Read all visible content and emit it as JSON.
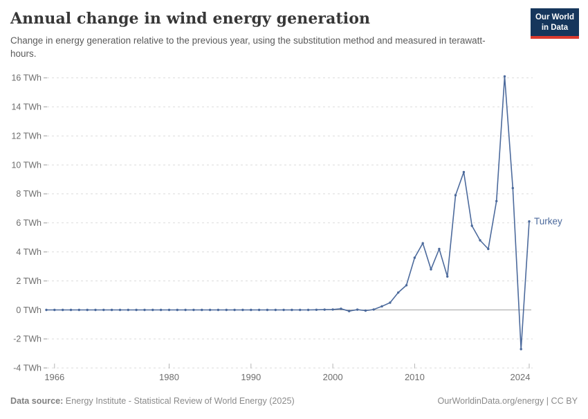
{
  "header": {
    "title": "Annual change in wind energy generation",
    "subtitle": "Change in energy generation relative to the previous year, using the substitution method and measured in terawatt-hours."
  },
  "logo": {
    "line1": "Our World",
    "line2": "in Data"
  },
  "footer": {
    "source_label": "Data source:",
    "source_text": "Energy Institute - Statistical Review of World Energy (2025)",
    "credit": "OurWorldinData.org/energy | CC BY"
  },
  "colors": {
    "line": "#4C6A9C",
    "grid": "#dbdbdb",
    "zero_line": "#a3a3a3",
    "tick_mark": "#b6b6b6",
    "axis_text": "#6e6e6e",
    "logo_bg": "#16365c",
    "logo_accent": "#dc3a2e"
  },
  "chart_data": {
    "type": "line",
    "title": "Annual change in wind energy generation",
    "unit": "TWh",
    "xlabel": "",
    "ylabel": "",
    "xlim": [
      1965,
      2024
    ],
    "ylim": [
      -4.6,
      16.6
    ],
    "x_ticks": [
      1966,
      1980,
      1990,
      2000,
      2010,
      2024
    ],
    "y_ticks": [
      -4,
      -2,
      0,
      2,
      4,
      6,
      8,
      10,
      12,
      14,
      16
    ],
    "y_tick_suffix": " TWh",
    "grid": "horizontal-dashed",
    "legend_position": "end-of-line-label",
    "series": [
      {
        "name": "Turkey",
        "years": [
          1965,
          1966,
          1967,
          1968,
          1969,
          1970,
          1971,
          1972,
          1973,
          1974,
          1975,
          1976,
          1977,
          1978,
          1979,
          1980,
          1981,
          1982,
          1983,
          1984,
          1985,
          1986,
          1987,
          1988,
          1989,
          1990,
          1991,
          1992,
          1993,
          1994,
          1995,
          1996,
          1997,
          1998,
          1999,
          2000,
          2001,
          2002,
          2003,
          2004,
          2005,
          2006,
          2007,
          2008,
          2009,
          2010,
          2011,
          2012,
          2013,
          2014,
          2015,
          2016,
          2017,
          2018,
          2019,
          2020,
          2021,
          2022,
          2023,
          2024
        ],
        "values": [
          0,
          0,
          0,
          0,
          0,
          0,
          0,
          0,
          0,
          0,
          0,
          0,
          0,
          0,
          0,
          0,
          0,
          0,
          0,
          0,
          0,
          0,
          0,
          0,
          0,
          0,
          0,
          0,
          0,
          0,
          0,
          0,
          0,
          0.01,
          0.02,
          0.03,
          0.08,
          -0.08,
          0.02,
          -0.05,
          0.03,
          0.25,
          0.5,
          1.2,
          1.7,
          3.6,
          4.6,
          2.8,
          4.2,
          2.3,
          7.9,
          9.5,
          5.8,
          4.8,
          4.2,
          7.5,
          16.1,
          8.4,
          -2.7,
          6.1
        ]
      }
    ]
  }
}
